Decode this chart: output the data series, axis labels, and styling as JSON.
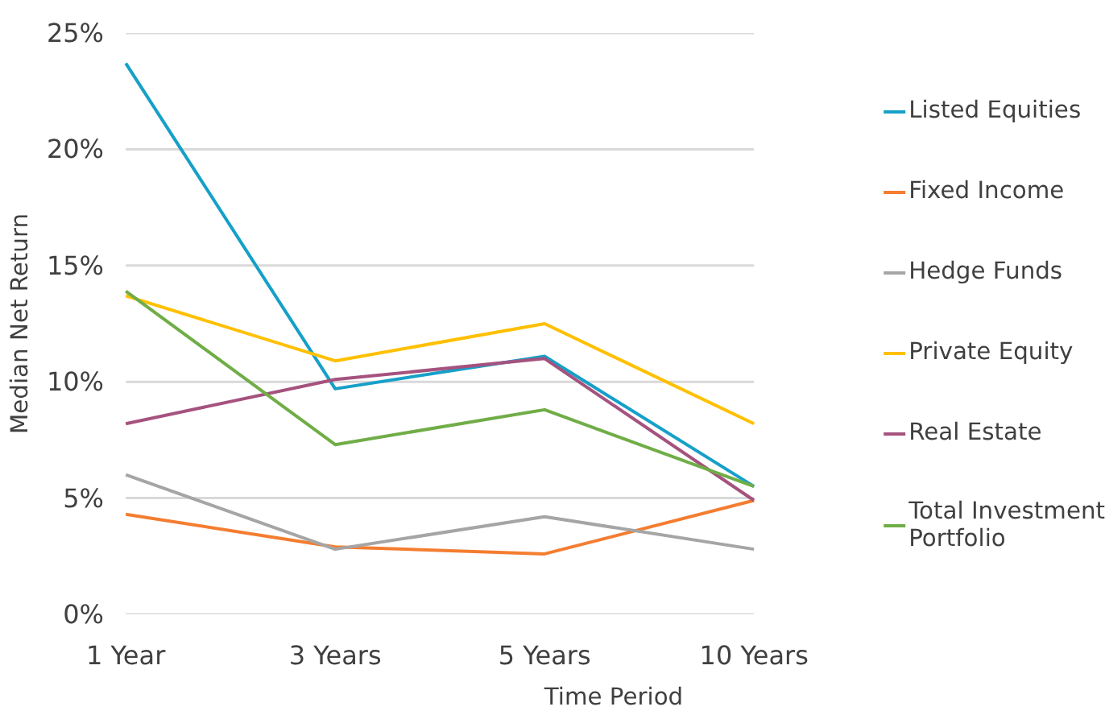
{
  "chart_data": {
    "type": "line",
    "xlabel": "Time Period",
    "ylabel": "Median Net Return",
    "categories": [
      "1 Year",
      "3 Years",
      "5 Years",
      "10 Years"
    ],
    "series": [
      {
        "name": "Listed Equities",
        "color": "#16a0c8",
        "values": [
          23.7,
          9.7,
          11.1,
          5.5
        ]
      },
      {
        "name": "Fixed Income",
        "color": "#f47d30",
        "values": [
          4.3,
          2.9,
          2.6,
          4.9
        ]
      },
      {
        "name": "Hedge Funds",
        "color": "#a5a5a5",
        "values": [
          6.0,
          2.8,
          4.2,
          2.8
        ]
      },
      {
        "name": "Private Equity",
        "color": "#ffc000",
        "values": [
          13.7,
          10.9,
          12.5,
          8.2
        ]
      },
      {
        "name": "Real Estate",
        "color": "#a5527e",
        "values": [
          8.2,
          10.1,
          11.0,
          4.9
        ]
      },
      {
        "name": "Total Investment Portfolio",
        "color": "#70ad47",
        "values": [
          13.9,
          7.3,
          8.8,
          5.5
        ]
      }
    ],
    "ylim": [
      0,
      25
    ],
    "yticks": [
      {
        "value": 0,
        "label": "0%"
      },
      {
        "value": 5,
        "label": "5%"
      },
      {
        "value": 10,
        "label": "10%"
      },
      {
        "value": 15,
        "label": "15%"
      },
      {
        "value": 20,
        "label": "20%"
      },
      {
        "value": 25,
        "label": "25%"
      }
    ],
    "grid": "y",
    "legend": "right",
    "marker": "none",
    "line_style": "solid"
  }
}
